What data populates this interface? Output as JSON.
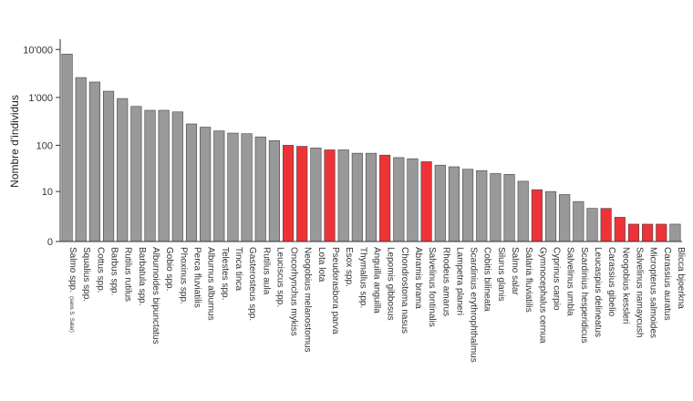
{
  "chart_data": {
    "type": "bar",
    "title": "",
    "xlabel": "",
    "ylabel": "Nombre d'individus",
    "y_scale": "log1p",
    "ylim": [
      0,
      15000
    ],
    "y_ticks": [
      0,
      10,
      100,
      1000,
      10000
    ],
    "y_tick_labels": [
      "0",
      "10",
      "100",
      "1'000",
      "10'000"
    ],
    "grid": false,
    "legend": "none",
    "colors": {
      "default": "#999999",
      "highlight": "#ee3338",
      "stroke": "#444444",
      "axis": "#333333"
    },
    "categories": [
      "Salmo spp.",
      "Squalius spp.",
      "Cottus spp.",
      "Barbus spp.",
      "Rutilus rutilus",
      "Barbatula spp.",
      "Alburnoides bipunctatus",
      "Gobio spp.",
      "Phoxinus spp.",
      "Perca fluviatilis",
      "Alburnus alburnus",
      "Telestes spp.",
      "Tinca tinca",
      "Gasterosteus spp.",
      "Rutilus aula",
      "Leuciscus spp.",
      "Oncorhynchus mykiss",
      "Neogobius melanostomus",
      "Lota lota",
      "Pseudorasbora parva",
      "Esox spp.",
      "Thymallus spp.",
      "Anguilla anguilla",
      "Lepomis gibbosus",
      "Chondrostoma nasus",
      "Abramis brama",
      "Salvelinus fontinalis",
      "Rhodeus amarus",
      "Lampetra planeri",
      "Scardinius erythrophthalmus",
      "Cobitis bilineata",
      "Silurus glanis",
      "Salmo salar",
      "Salaria fluviatilis",
      "Gymnocephalus cernua",
      "Cyprinus carpio",
      "Salvelinus umbla",
      "Scardinius hesperidicus",
      "Leucaspius delineatus",
      "Carassius gibelio",
      "Neogobius kessleri",
      "Salvelinus namaycush",
      "Micropterus salmoides",
      "Carassius auratus",
      "Blicca bjoerkna"
    ],
    "category_notes": {
      "0": "(sans S. Salar)"
    },
    "values": [
      8000,
      2600,
      2100,
      1350,
      950,
      650,
      540,
      540,
      500,
      280,
      240,
      200,
      180,
      175,
      150,
      125,
      100,
      95,
      88,
      80,
      80,
      68,
      68,
      62,
      55,
      52,
      45,
      38,
      35,
      31,
      29,
      25,
      24,
      17,
      11,
      10,
      8.5,
      5.8,
      3.9,
      3.9,
      2.2,
      1.3,
      1.3,
      1.3,
      1.3
    ],
    "highlight": [
      false,
      false,
      false,
      false,
      false,
      false,
      false,
      false,
      false,
      false,
      false,
      false,
      false,
      false,
      false,
      false,
      true,
      true,
      false,
      true,
      false,
      false,
      false,
      true,
      false,
      false,
      true,
      false,
      false,
      false,
      false,
      false,
      false,
      false,
      true,
      false,
      false,
      false,
      false,
      true,
      true,
      true,
      true,
      true,
      false
    ]
  }
}
